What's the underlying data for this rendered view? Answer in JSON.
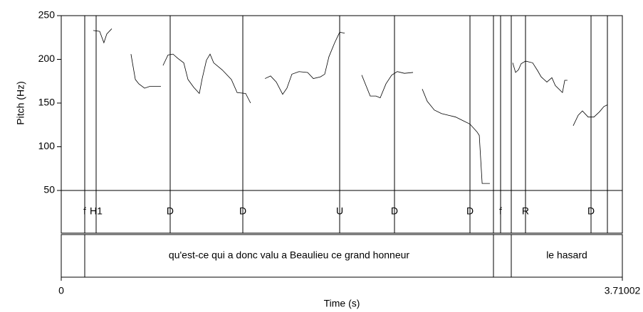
{
  "chart_data": {
    "type": "line",
    "x_label": "Time (s)",
    "y_label": "Pitch (Hz)",
    "xlim": [
      0,
      3.71002
    ],
    "xticks": [
      0,
      3.71002
    ],
    "ylim": [
      50,
      250
    ],
    "yticks": [
      50,
      100,
      150,
      200,
      250
    ],
    "color": "#000000",
    "x": [
      0.212,
      0.254,
      0.282,
      0.301,
      0.334,
      0.4,
      0.461,
      0.49,
      0.513,
      0.551,
      0.584,
      0.659,
      0.666,
      0.673,
      0.706,
      0.739,
      0.772,
      0.81,
      0.838,
      0.876,
      0.913,
      0.932,
      0.96,
      0.984,
      1.008,
      1.064,
      1.125,
      1.163,
      1.219,
      1.252,
      1.3,
      1.347,
      1.384,
      1.422,
      1.464,
      1.492,
      1.525,
      1.572,
      1.629,
      1.667,
      1.714,
      1.742,
      1.77,
      1.808,
      1.841,
      1.874,
      1.93,
      1.987,
      2.015,
      2.043,
      2.081,
      2.109,
      2.147,
      2.185,
      2.222,
      2.269,
      2.326,
      2.356,
      2.387,
      2.42,
      2.467,
      2.514,
      2.561,
      2.608,
      2.655,
      2.702,
      2.749,
      2.764,
      2.783,
      2.834,
      2.9,
      2.985,
      3.004,
      3.023,
      3.041,
      3.07,
      3.117,
      3.15,
      3.173,
      3.211,
      3.244,
      3.267,
      3.314,
      3.329,
      3.347,
      3.366,
      3.385,
      3.418,
      3.446,
      3.484,
      3.522,
      3.559,
      3.588,
      3.611
    ],
    "values": [
      233,
      232,
      219,
      229,
      235,
      null,
      206,
      177,
      172,
      167,
      169,
      169,
      null,
      193,
      205,
      206,
      201,
      196,
      177,
      168,
      161,
      178,
      199,
      206,
      196,
      188,
      177,
      162,
      161,
      150,
      null,
      178,
      181,
      174,
      160,
      167,
      183,
      186,
      185,
      178,
      180,
      183,
      203,
      219,
      231,
      230,
      null,
      182,
      170,
      158,
      158,
      156,
      172,
      182,
      186,
      184,
      185,
      null,
      166,
      152,
      142,
      138,
      136,
      134,
      130,
      126,
      117,
      113,
      58,
      58,
      null,
      196,
      185,
      188,
      195,
      198,
      196,
      187,
      180,
      174,
      179,
      170,
      162,
      176,
      176,
      null,
      124,
      136,
      141,
      134,
      134,
      140,
      146,
      148
    ],
    "tiers": [
      {
        "points": [
          {
            "time": 0.1554,
            "label": "f"
          },
          {
            "time": 0.2307,
            "label": "H1"
          },
          {
            "time": 0.7203,
            "label": "D"
          },
          {
            "time": 1.2006,
            "label": "D"
          },
          {
            "time": 1.8409,
            "label": "U"
          },
          {
            "time": 2.2034,
            "label": "D"
          },
          {
            "time": 2.7025,
            "label": "D"
          },
          {
            "time": 2.8578,
            "label": null
          },
          {
            "time": 2.9049,
            "label": "f"
          },
          {
            "time": 2.9755,
            "label": null
          },
          {
            "time": 3.0697,
            "label": "R"
          },
          {
            "time": 3.5029,
            "label": "D"
          },
          {
            "time": 3.6112,
            "label": null
          }
        ]
      },
      {
        "intervals": [
          {
            "start": 0,
            "end": 0.1554,
            "label": null
          },
          {
            "start": 0.1554,
            "end": 2.8578,
            "label": "qu'est-ce qui a donc valu a Beaulieu ce grand honneur"
          },
          {
            "start": 2.8578,
            "end": 2.9755,
            "label": null
          },
          {
            "start": 2.9755,
            "end": 3.71002,
            "label": "le hasard"
          }
        ]
      }
    ]
  }
}
